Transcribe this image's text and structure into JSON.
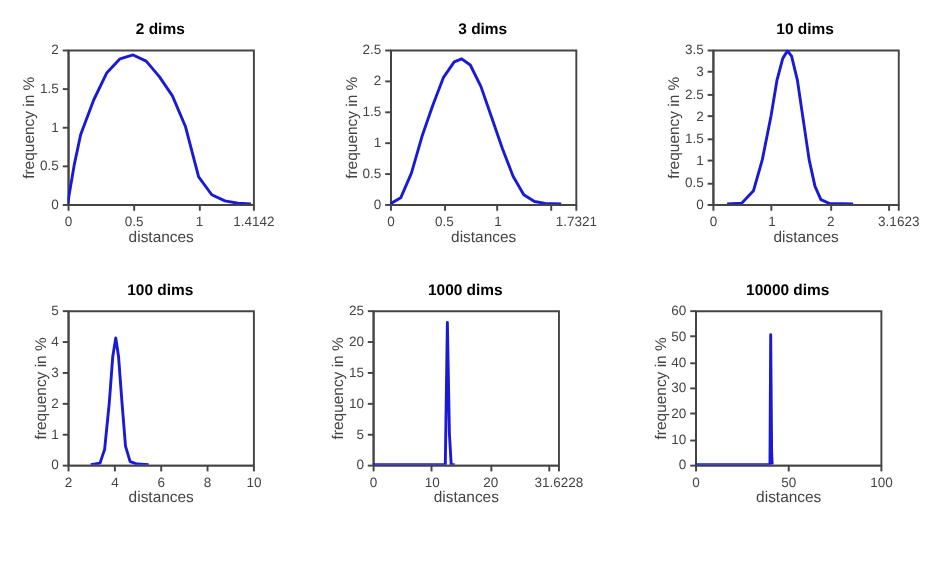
{
  "chart_data": [
    {
      "type": "line",
      "title": "2 dims",
      "xlabel": "distances",
      "ylabel": "frequency in %",
      "color": "#1a1ad6",
      "xlim": [
        0,
        1.4142
      ],
      "xticks": [
        0,
        0.5,
        1,
        1.4142
      ],
      "ylim": [
        0,
        2
      ],
      "yticks": [
        0,
        0.5,
        1,
        1.5,
        2
      ],
      "x": [
        0,
        0.05,
        0.1,
        0.2,
        0.3,
        0.4,
        0.5,
        0.6,
        0.7,
        0.8,
        0.9,
        1.0,
        1.1,
        1.2,
        1.3,
        1.4
      ],
      "values": [
        0,
        0.5,
        0.9,
        1.35,
        1.7,
        1.88,
        1.93,
        1.85,
        1.65,
        1.4,
        1.0,
        0.35,
        0.12,
        0.04,
        0.01,
        0
      ]
    },
    {
      "type": "line",
      "title": "3 dims",
      "xlabel": "distances",
      "ylabel": "frequency in %",
      "color": "#1a1ad6",
      "xlim": [
        0,
        1.7321
      ],
      "xticks": [
        0,
        0.5,
        1,
        {
          "value": 1.5,
          "label": null
        },
        1.7321
      ],
      "ylim": [
        0,
        2.5
      ],
      "yticks": [
        0,
        0.5,
        1,
        1.5,
        2,
        2.5
      ],
      "x": [
        0,
        0.1,
        0.2,
        0.3,
        0.4,
        0.5,
        0.6,
        0.67,
        0.75,
        0.85,
        0.95,
        1.05,
        1.15,
        1.25,
        1.35,
        1.45,
        1.6
      ],
      "values": [
        0,
        0.1,
        0.5,
        1.1,
        1.6,
        2.05,
        2.3,
        2.35,
        2.25,
        1.9,
        1.4,
        0.9,
        0.45,
        0.15,
        0.04,
        0.01,
        0
      ]
    },
    {
      "type": "line",
      "title": "10 dims",
      "xlabel": "distances",
      "ylabel": "frequency in %",
      "color": "#1a1ad6",
      "xlim": [
        0,
        3.1623
      ],
      "xticks": [
        0,
        1,
        2,
        {
          "value": 3,
          "label": null
        },
        3.1623
      ],
      "ylim": [
        0,
        3.5
      ],
      "yticks": [
        0,
        0.5,
        1,
        1.5,
        2,
        2.5,
        3,
        3.5
      ],
      "x": [
        0.25,
        0.5,
        0.7,
        0.85,
        1.0,
        1.1,
        1.2,
        1.28,
        1.35,
        1.45,
        1.55,
        1.65,
        1.75,
        1.85,
        2.0,
        2.4
      ],
      "values": [
        0,
        0.02,
        0.3,
        1.0,
        2.0,
        2.8,
        3.3,
        3.47,
        3.35,
        2.8,
        1.9,
        1.0,
        0.4,
        0.1,
        0.01,
        0
      ]
    },
    {
      "type": "line",
      "title": "100 dims",
      "xlabel": "distances",
      "ylabel": "frequency in %",
      "color": "#1a1ad6",
      "xlim": [
        2,
        10
      ],
      "xticks": [
        2,
        4,
        6,
        8,
        10
      ],
      "ylim": [
        0,
        5
      ],
      "yticks": [
        0,
        1,
        2,
        3,
        4,
        5
      ],
      "x": [
        3.0,
        3.4,
        3.6,
        3.8,
        3.95,
        4.08,
        4.2,
        4.35,
        4.5,
        4.7,
        5.0,
        5.5
      ],
      "values": [
        0,
        0.05,
        0.5,
        2.0,
        3.5,
        4.1,
        3.5,
        2.0,
        0.6,
        0.1,
        0.02,
        0
      ]
    },
    {
      "type": "line",
      "title": "1000 dims",
      "xlabel": "distances",
      "ylabel": "frequency in %",
      "color": "#1a1ad6",
      "xlim": [
        0,
        31.6228
      ],
      "xticks": [
        0,
        10,
        20,
        {
          "value": 30,
          "label": null
        },
        31.6228
      ],
      "ylim": [
        0,
        25
      ],
      "yticks": [
        0,
        5,
        10,
        15,
        20,
        25
      ],
      "x": [
        0,
        12.4,
        12.75,
        13.1,
        13.4,
        14
      ],
      "values": [
        0,
        0,
        23,
        5,
        0,
        0
      ]
    },
    {
      "type": "line",
      "title": "10000 dims",
      "xlabel": "distances",
      "ylabel": "frequency in %",
      "color": "#1a1ad6",
      "xlim": [
        0,
        100
      ],
      "xticks": [
        0,
        50,
        100
      ],
      "ylim": [
        0,
        60
      ],
      "yticks": [
        0,
        10,
        20,
        30,
        40,
        50,
        60
      ],
      "x": [
        0,
        40.4,
        40.8,
        41.3,
        41.6
      ],
      "values": [
        0,
        0,
        50.5,
        5,
        0
      ]
    }
  ]
}
